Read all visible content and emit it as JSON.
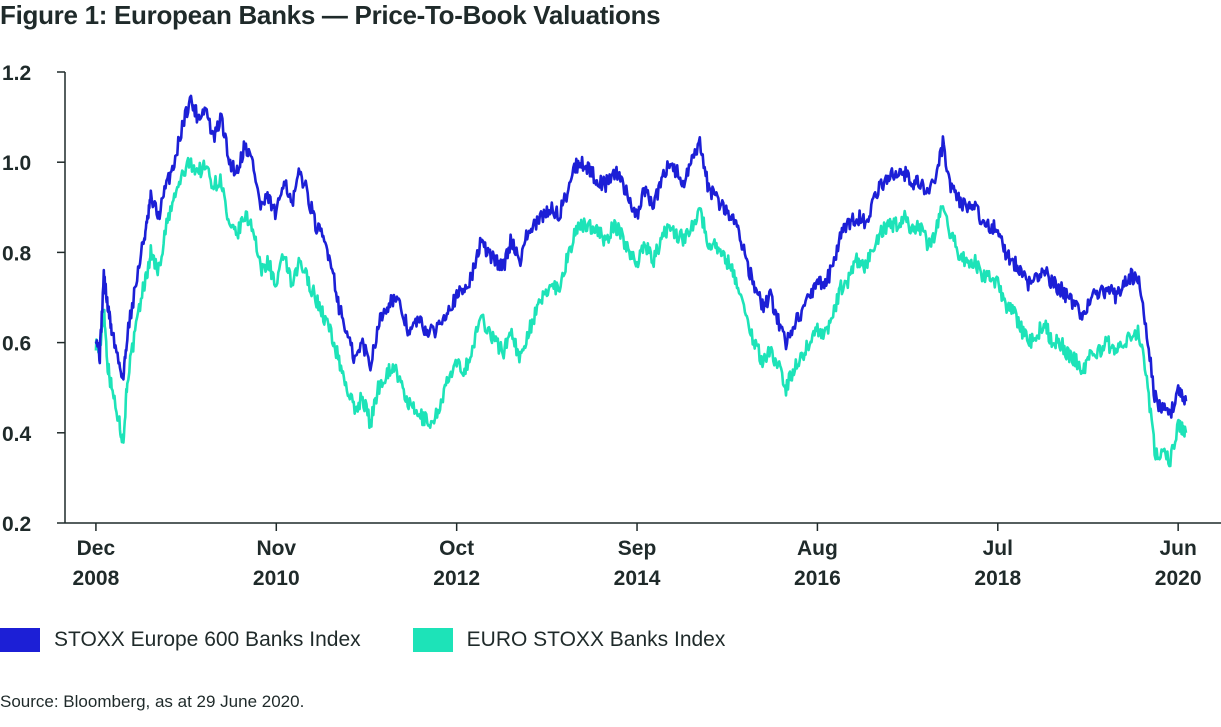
{
  "title": "Figure 1: European Banks — Price-To-Book Valuations",
  "source": "Source: Bloomberg, as at 29 June 2020.",
  "colors": {
    "stoxx600": "#1c1fd6",
    "eurostoxx": "#1de3b8",
    "axis": "#1f2a2a"
  },
  "legend": [
    {
      "label": "STOXX Europe 600 Banks Index",
      "color": "#1c1fd6"
    },
    {
      "label": "EURO STOXX Banks Index",
      "color": "#1de3b8"
    }
  ],
  "chart_data": {
    "type": "line",
    "title": "Figure 1: European Banks — Price-To-Book Valuations",
    "xlabel": "",
    "ylabel": "",
    "ylim": [
      0.2,
      1.2
    ],
    "yticks": [
      "0.2",
      "0.4",
      "0.6",
      "0.8",
      "1.0",
      "1.2"
    ],
    "xticks": [
      {
        "line1": "Dec",
        "line2": "2008",
        "t": 0
      },
      {
        "line1": "Nov",
        "line2": "2010",
        "t": 23
      },
      {
        "line1": "Oct",
        "line2": "2012",
        "t": 46
      },
      {
        "line1": "Sep",
        "line2": "2014",
        "t": 69
      },
      {
        "line1": "Aug",
        "line2": "2016",
        "t": 92
      },
      {
        "line1": "Jul",
        "line2": "2018",
        "t": 115
      },
      {
        "line1": "Jun",
        "line2": "2020",
        "t": 138
      }
    ],
    "x_range": [
      -0.5,
      139
    ],
    "grid": false,
    "legend_position": "bottom",
    "series": [
      {
        "name": "STOXX Europe 600 Banks Index",
        "color": "#1c1fd6",
        "points": [
          [
            0,
            0.62
          ],
          [
            0.5,
            0.57
          ],
          [
            1,
            0.75
          ],
          [
            1.5,
            0.68
          ],
          [
            2,
            0.63
          ],
          [
            3,
            0.55
          ],
          [
            3.5,
            0.52
          ],
          [
            4,
            0.62
          ],
          [
            5,
            0.72
          ],
          [
            6,
            0.82
          ],
          [
            6.5,
            0.86
          ],
          [
            7,
            0.92
          ],
          [
            8,
            0.88
          ],
          [
            9,
            0.95
          ],
          [
            10,
            1.0
          ],
          [
            11,
            1.08
          ],
          [
            12,
            1.14
          ],
          [
            13,
            1.1
          ],
          [
            14,
            1.12
          ],
          [
            15,
            1.05
          ],
          [
            16,
            1.1
          ],
          [
            17,
            1.0
          ],
          [
            18,
            0.98
          ],
          [
            19,
            1.04
          ],
          [
            20,
            1.0
          ],
          [
            21,
            0.9
          ],
          [
            22,
            0.92
          ],
          [
            23,
            0.88
          ],
          [
            24,
            0.97
          ],
          [
            25,
            0.9
          ],
          [
            26,
            0.98
          ],
          [
            27,
            0.93
          ],
          [
            28,
            0.86
          ],
          [
            29,
            0.83
          ],
          [
            30,
            0.78
          ],
          [
            31,
            0.68
          ],
          [
            32,
            0.62
          ],
          [
            33,
            0.56
          ],
          [
            34,
            0.6
          ],
          [
            35,
            0.55
          ],
          [
            36,
            0.64
          ],
          [
            37,
            0.68
          ],
          [
            38,
            0.7
          ],
          [
            39,
            0.67
          ],
          [
            40,
            0.62
          ],
          [
            41,
            0.65
          ],
          [
            42,
            0.63
          ],
          [
            43,
            0.62
          ],
          [
            44,
            0.65
          ],
          [
            45,
            0.68
          ],
          [
            46,
            0.7
          ],
          [
            47,
            0.72
          ],
          [
            48,
            0.75
          ],
          [
            49,
            0.82
          ],
          [
            50,
            0.8
          ],
          [
            51,
            0.78
          ],
          [
            52,
            0.77
          ],
          [
            53,
            0.83
          ],
          [
            54,
            0.78
          ],
          [
            55,
            0.84
          ],
          [
            56,
            0.86
          ],
          [
            57,
            0.88
          ],
          [
            58,
            0.9
          ],
          [
            59,
            0.88
          ],
          [
            60,
            0.93
          ],
          [
            61,
            0.99
          ],
          [
            62,
            1.0
          ],
          [
            63,
            0.98
          ],
          [
            64,
            0.96
          ],
          [
            65,
            0.95
          ],
          [
            66,
            0.98
          ],
          [
            67,
            0.96
          ],
          [
            68,
            0.92
          ],
          [
            69,
            0.88
          ],
          [
            70,
            0.94
          ],
          [
            71,
            0.9
          ],
          [
            72,
            0.95
          ],
          [
            73,
            1.0
          ],
          [
            74,
            0.98
          ],
          [
            75,
            0.95
          ],
          [
            76,
            1.0
          ],
          [
            77,
            1.04
          ],
          [
            78,
            0.95
          ],
          [
            79,
            0.92
          ],
          [
            80,
            0.9
          ],
          [
            81,
            0.88
          ],
          [
            82,
            0.85
          ],
          [
            83,
            0.78
          ],
          [
            84,
            0.72
          ],
          [
            85,
            0.68
          ],
          [
            86,
            0.7
          ],
          [
            87,
            0.65
          ],
          [
            88,
            0.6
          ],
          [
            89,
            0.64
          ],
          [
            90,
            0.67
          ],
          [
            91,
            0.7
          ],
          [
            92,
            0.74
          ],
          [
            93,
            0.73
          ],
          [
            94,
            0.77
          ],
          [
            95,
            0.84
          ],
          [
            96,
            0.86
          ],
          [
            97,
            0.88
          ],
          [
            98,
            0.87
          ],
          [
            99,
            0.9
          ],
          [
            100,
            0.95
          ],
          [
            101,
            0.96
          ],
          [
            102,
            0.98
          ],
          [
            103,
            0.98
          ],
          [
            104,
            0.95
          ],
          [
            105,
            0.96
          ],
          [
            106,
            0.93
          ],
          [
            107,
            0.96
          ],
          [
            108,
            1.04
          ],
          [
            109,
            0.95
          ],
          [
            110,
            0.92
          ],
          [
            111,
            0.9
          ],
          [
            112,
            0.9
          ],
          [
            113,
            0.87
          ],
          [
            114,
            0.86
          ],
          [
            115,
            0.85
          ],
          [
            116,
            0.8
          ],
          [
            117,
            0.78
          ],
          [
            118,
            0.75
          ],
          [
            119,
            0.73
          ],
          [
            120,
            0.74
          ],
          [
            121,
            0.76
          ],
          [
            122,
            0.73
          ],
          [
            123,
            0.72
          ],
          [
            124,
            0.7
          ],
          [
            125,
            0.68
          ],
          [
            126,
            0.66
          ],
          [
            127,
            0.7
          ],
          [
            128,
            0.71
          ],
          [
            129,
            0.72
          ],
          [
            130,
            0.7
          ],
          [
            131,
            0.73
          ],
          [
            132,
            0.75
          ],
          [
            133,
            0.73
          ],
          [
            134,
            0.62
          ],
          [
            135,
            0.48
          ],
          [
            136,
            0.45
          ],
          [
            137,
            0.44
          ],
          [
            138,
            0.5
          ],
          [
            138.5,
            0.48
          ],
          [
            139,
            0.47
          ]
        ]
      },
      {
        "name": "EURO STOXX Banks Index",
        "color": "#1de3b8",
        "points": [
          [
            0,
            0.6
          ],
          [
            0.5,
            0.58
          ],
          [
            1,
            0.68
          ],
          [
            1.5,
            0.55
          ],
          [
            2,
            0.5
          ],
          [
            3,
            0.42
          ],
          [
            3.5,
            0.38
          ],
          [
            4,
            0.52
          ],
          [
            5,
            0.62
          ],
          [
            6,
            0.72
          ],
          [
            6.5,
            0.75
          ],
          [
            7,
            0.8
          ],
          [
            8,
            0.76
          ],
          [
            9,
            0.86
          ],
          [
            10,
            0.92
          ],
          [
            11,
            0.97
          ],
          [
            12,
            1.0
          ],
          [
            13,
            0.98
          ],
          [
            14,
            0.99
          ],
          [
            15,
            0.95
          ],
          [
            16,
            0.96
          ],
          [
            17,
            0.85
          ],
          [
            18,
            0.84
          ],
          [
            19,
            0.88
          ],
          [
            20,
            0.86
          ],
          [
            21,
            0.76
          ],
          [
            22,
            0.78
          ],
          [
            23,
            0.72
          ],
          [
            24,
            0.8
          ],
          [
            25,
            0.72
          ],
          [
            26,
            0.78
          ],
          [
            27,
            0.74
          ],
          [
            28,
            0.7
          ],
          [
            29,
            0.66
          ],
          [
            30,
            0.62
          ],
          [
            31,
            0.56
          ],
          [
            32,
            0.5
          ],
          [
            33,
            0.45
          ],
          [
            34,
            0.48
          ],
          [
            35,
            0.42
          ],
          [
            36,
            0.5
          ],
          [
            37,
            0.53
          ],
          [
            38,
            0.55
          ],
          [
            39,
            0.5
          ],
          [
            40,
            0.46
          ],
          [
            41,
            0.44
          ],
          [
            42,
            0.43
          ],
          [
            43,
            0.42
          ],
          [
            44,
            0.47
          ],
          [
            45,
            0.52
          ],
          [
            46,
            0.55
          ],
          [
            47,
            0.54
          ],
          [
            48,
            0.58
          ],
          [
            49,
            0.66
          ],
          [
            50,
            0.63
          ],
          [
            51,
            0.6
          ],
          [
            52,
            0.58
          ],
          [
            53,
            0.63
          ],
          [
            54,
            0.56
          ],
          [
            55,
            0.62
          ],
          [
            56,
            0.66
          ],
          [
            57,
            0.7
          ],
          [
            58,
            0.73
          ],
          [
            59,
            0.72
          ],
          [
            60,
            0.78
          ],
          [
            61,
            0.84
          ],
          [
            62,
            0.86
          ],
          [
            63,
            0.86
          ],
          [
            64,
            0.85
          ],
          [
            65,
            0.82
          ],
          [
            66,
            0.86
          ],
          [
            67,
            0.84
          ],
          [
            68,
            0.8
          ],
          [
            69,
            0.78
          ],
          [
            70,
            0.82
          ],
          [
            71,
            0.78
          ],
          [
            72,
            0.82
          ],
          [
            73,
            0.86
          ],
          [
            74,
            0.84
          ],
          [
            75,
            0.83
          ],
          [
            76,
            0.86
          ],
          [
            77,
            0.9
          ],
          [
            78,
            0.82
          ],
          [
            79,
            0.82
          ],
          [
            80,
            0.79
          ],
          [
            81,
            0.77
          ],
          [
            82,
            0.72
          ],
          [
            83,
            0.65
          ],
          [
            84,
            0.6
          ],
          [
            85,
            0.56
          ],
          [
            86,
            0.58
          ],
          [
            87,
            0.55
          ],
          [
            88,
            0.5
          ],
          [
            89,
            0.54
          ],
          [
            90,
            0.57
          ],
          [
            91,
            0.6
          ],
          [
            92,
            0.63
          ],
          [
            93,
            0.62
          ],
          [
            94,
            0.66
          ],
          [
            95,
            0.72
          ],
          [
            96,
            0.74
          ],
          [
            97,
            0.78
          ],
          [
            98,
            0.77
          ],
          [
            99,
            0.8
          ],
          [
            100,
            0.84
          ],
          [
            101,
            0.86
          ],
          [
            102,
            0.86
          ],
          [
            103,
            0.88
          ],
          [
            104,
            0.85
          ],
          [
            105,
            0.86
          ],
          [
            106,
            0.82
          ],
          [
            107,
            0.84
          ],
          [
            108,
            0.9
          ],
          [
            109,
            0.84
          ],
          [
            110,
            0.8
          ],
          [
            111,
            0.78
          ],
          [
            112,
            0.78
          ],
          [
            113,
            0.75
          ],
          [
            114,
            0.74
          ],
          [
            115,
            0.73
          ],
          [
            116,
            0.68
          ],
          [
            117,
            0.67
          ],
          [
            118,
            0.63
          ],
          [
            119,
            0.6
          ],
          [
            120,
            0.62
          ],
          [
            121,
            0.64
          ],
          [
            122,
            0.6
          ],
          [
            123,
            0.6
          ],
          [
            124,
            0.57
          ],
          [
            125,
            0.56
          ],
          [
            126,
            0.54
          ],
          [
            127,
            0.58
          ],
          [
            128,
            0.58
          ],
          [
            129,
            0.6
          ],
          [
            130,
            0.57
          ],
          [
            131,
            0.6
          ],
          [
            132,
            0.62
          ],
          [
            133,
            0.62
          ],
          [
            134,
            0.52
          ],
          [
            135,
            0.36
          ],
          [
            136,
            0.35
          ],
          [
            137,
            0.34
          ],
          [
            138,
            0.42
          ],
          [
            138.5,
            0.41
          ],
          [
            139,
            0.4
          ]
        ]
      }
    ]
  }
}
